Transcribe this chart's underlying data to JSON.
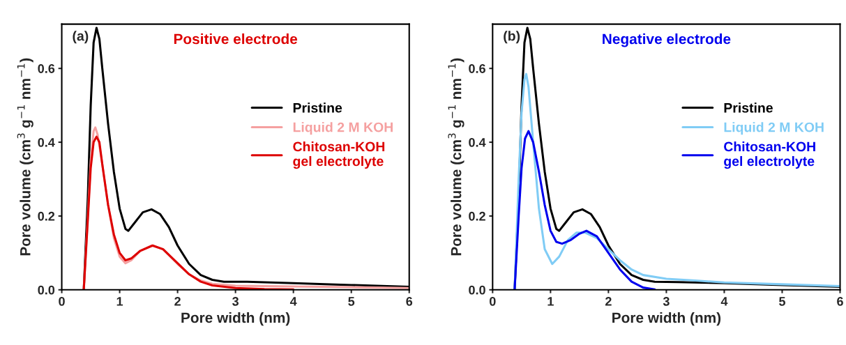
{
  "chart_data": [
    {
      "type": "line",
      "title": "Positive electrode",
      "xlabel": "Pore width (nm)",
      "ylabel": "Pore volume (cm$^{3}$ g$^{−1}$ nm$^{−1}$)",
      "annotations": [
        "(a)"
      ],
      "xlim": [
        0,
        6
      ],
      "ylim": [
        0,
        0.72
      ],
      "xticks": [
        0,
        1,
        2,
        3,
        4,
        5,
        6
      ],
      "yticks": [
        {
          "value": 0,
          "label": "0.0"
        },
        0.2,
        0.4,
        0.6
      ],
      "legend": "right",
      "grid": false,
      "series": [
        {
          "name": "Pristine",
          "color": "#000000",
          "x": [
            0.38,
            0.45,
            0.5,
            0.55,
            0.6,
            0.65,
            0.7,
            0.8,
            0.9,
            1.0,
            1.1,
            1.15,
            1.25,
            1.4,
            1.55,
            1.7,
            1.85,
            2.0,
            2.2,
            2.4,
            2.6,
            2.8,
            3.2,
            4.0,
            5.0,
            6.0
          ],
          "values": [
            0.0,
            0.25,
            0.5,
            0.67,
            0.71,
            0.68,
            0.6,
            0.45,
            0.32,
            0.22,
            0.165,
            0.16,
            0.18,
            0.21,
            0.218,
            0.205,
            0.17,
            0.12,
            0.07,
            0.04,
            0.027,
            0.022,
            0.022,
            0.018,
            0.013,
            0.008
          ]
        },
        {
          "name": "Liquid 2 M KOH",
          "color": "#f5a0a0",
          "x": [
            0.38,
            0.45,
            0.5,
            0.55,
            0.58,
            0.62,
            0.7,
            0.8,
            0.9,
            1.0,
            1.1,
            1.2,
            1.35,
            1.55,
            1.75,
            2.0,
            2.2,
            2.4,
            2.6,
            3.0,
            4.0,
            5.0,
            6.0
          ],
          "values": [
            0.0,
            0.2,
            0.35,
            0.43,
            0.44,
            0.42,
            0.34,
            0.23,
            0.14,
            0.09,
            0.072,
            0.08,
            0.105,
            0.12,
            0.11,
            0.07,
            0.042,
            0.025,
            0.016,
            0.011,
            0.009,
            0.007,
            0.005
          ]
        },
        {
          "name": "Chitosan-KOH\ngel electrolyte",
          "color": "#dd0000",
          "x": [
            0.38,
            0.45,
            0.5,
            0.55,
            0.6,
            0.65,
            0.7,
            0.8,
            0.9,
            1.0,
            1.1,
            1.2,
            1.35,
            1.57,
            1.75,
            2.0,
            2.2,
            2.4,
            2.6,
            3.0,
            3.5,
            4.0
          ],
          "values": [
            0.0,
            0.19,
            0.33,
            0.4,
            0.415,
            0.4,
            0.34,
            0.23,
            0.15,
            0.1,
            0.08,
            0.085,
            0.105,
            0.12,
            0.11,
            0.072,
            0.042,
            0.022,
            0.012,
            0.005,
            0.002,
            0.001
          ]
        }
      ]
    },
    {
      "type": "line",
      "title": "Negative electrode",
      "xlabel": "Pore width (nm)",
      "ylabel": "Pore volume (cm$^{3}$ g$^{−1}$ nm$^{−1}$)",
      "annotations": [
        "(b)"
      ],
      "xlim": [
        0,
        6
      ],
      "ylim": [
        0,
        0.72
      ],
      "xticks": [
        0,
        1,
        2,
        3,
        4,
        5,
        6
      ],
      "yticks": [
        {
          "value": 0,
          "label": "0.0"
        },
        0.2,
        0.4,
        0.6
      ],
      "legend": "right",
      "grid": false,
      "series": [
        {
          "name": "Pristine",
          "color": "#000000",
          "x": [
            0.38,
            0.45,
            0.5,
            0.55,
            0.6,
            0.65,
            0.7,
            0.8,
            0.9,
            1.0,
            1.1,
            1.15,
            1.25,
            1.4,
            1.55,
            1.7,
            1.85,
            2.0,
            2.2,
            2.4,
            2.6,
            2.8,
            3.2,
            4.0,
            5.0,
            6.0
          ],
          "values": [
            0.0,
            0.25,
            0.5,
            0.67,
            0.71,
            0.68,
            0.6,
            0.45,
            0.32,
            0.22,
            0.165,
            0.16,
            0.18,
            0.21,
            0.218,
            0.205,
            0.17,
            0.12,
            0.07,
            0.04,
            0.027,
            0.022,
            0.021,
            0.018,
            0.013,
            0.008
          ]
        },
        {
          "name": "Liquid 2 M KOH",
          "color": "#80ccf5",
          "x": [
            0.38,
            0.45,
            0.5,
            0.55,
            0.58,
            0.62,
            0.7,
            0.8,
            0.9,
            1.03,
            1.15,
            1.3,
            1.45,
            1.6,
            1.8,
            2.0,
            2.2,
            2.4,
            2.6,
            3.0,
            3.5,
            4.0,
            5.0,
            6.0
          ],
          "values": [
            0.0,
            0.3,
            0.48,
            0.57,
            0.585,
            0.55,
            0.4,
            0.22,
            0.11,
            0.07,
            0.09,
            0.135,
            0.155,
            0.155,
            0.14,
            0.11,
            0.08,
            0.055,
            0.04,
            0.03,
            0.025,
            0.02,
            0.015,
            0.01
          ]
        },
        {
          "name": "Chitosan-KOH\ngel electrolyte",
          "color": "#0000ee",
          "x": [
            0.38,
            0.45,
            0.5,
            0.56,
            0.62,
            0.7,
            0.8,
            0.9,
            1.0,
            1.1,
            1.2,
            1.35,
            1.5,
            1.62,
            1.8,
            2.0,
            2.2,
            2.4,
            2.6,
            2.8
          ],
          "values": [
            0.0,
            0.2,
            0.33,
            0.41,
            0.43,
            0.4,
            0.32,
            0.23,
            0.16,
            0.13,
            0.125,
            0.135,
            0.152,
            0.16,
            0.145,
            0.1,
            0.055,
            0.022,
            0.006,
            0.001
          ]
        }
      ]
    }
  ]
}
